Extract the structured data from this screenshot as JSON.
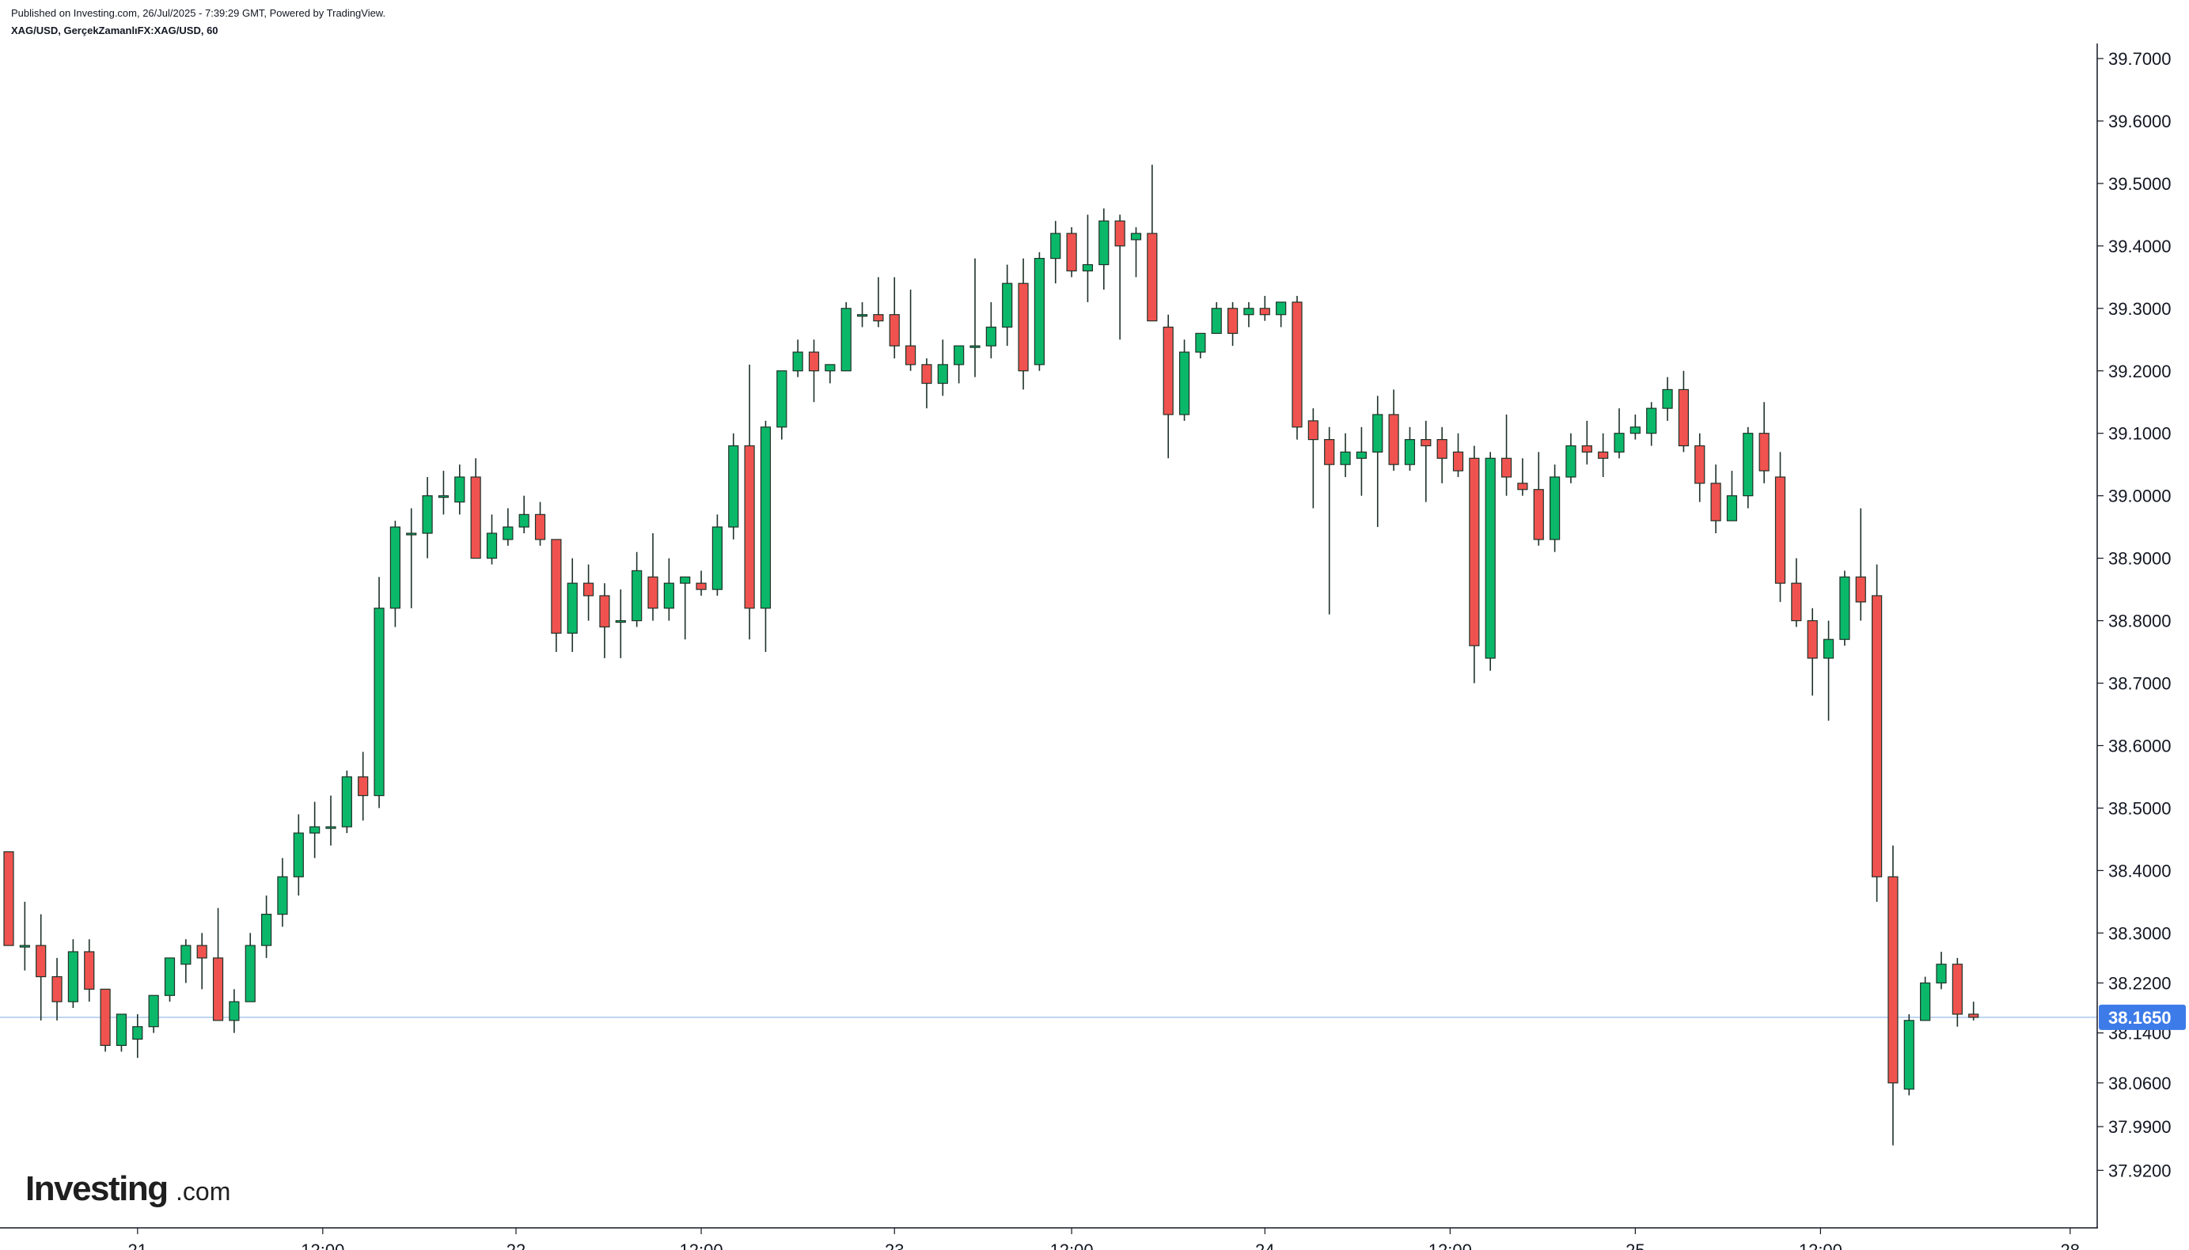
{
  "header": {
    "published": "Published on Investing.com, 26/Jul/2025 - 7:39:29 GMT, Powered by TradingView.",
    "symbol_line": "XAG/USD, GerçekZamanlıFX:XAG/USD, 60"
  },
  "logo": {
    "brand": "Investing",
    "suffix": ".com"
  },
  "colors": {
    "up": "#0bb86a",
    "down": "#f0534f",
    "wick": "#1e3228",
    "price_line": "#a9c8ec",
    "price_tag": "#3d7be8",
    "axis": "#131722"
  },
  "chart_data": {
    "type": "candlestick",
    "timeframe": "60",
    "ylim": [
      37.86,
      39.73
    ],
    "y_ticks": [
      {
        "value": 39.7,
        "label": "39.7000"
      },
      {
        "value": 39.6,
        "label": "39.6000"
      },
      {
        "value": 39.5,
        "label": "39.5000"
      },
      {
        "value": 39.4,
        "label": "39.4000"
      },
      {
        "value": 39.3,
        "label": "39.3000"
      },
      {
        "value": 39.2,
        "label": "39.2000"
      },
      {
        "value": 39.1,
        "label": "39.1000"
      },
      {
        "value": 39.0,
        "label": "39.0000"
      },
      {
        "value": 38.9,
        "label": "38.9000"
      },
      {
        "value": 38.8,
        "label": "38.8000"
      },
      {
        "value": 38.7,
        "label": "38.7000"
      },
      {
        "value": 38.6,
        "label": "38.6000"
      },
      {
        "value": 38.5,
        "label": "38.5000"
      },
      {
        "value": 38.4,
        "label": "38.4000"
      },
      {
        "value": 38.3,
        "label": "38.3000"
      },
      {
        "value": 38.22,
        "label": "38.2200"
      },
      {
        "value": 38.14,
        "label": "38.1400"
      },
      {
        "value": 38.06,
        "label": "38.0600"
      },
      {
        "value": 37.99,
        "label": "37.9900"
      },
      {
        "value": 37.92,
        "label": "37.9200"
      }
    ],
    "x_ticks": [
      {
        "index": 8,
        "label": "21"
      },
      {
        "index": 19.5,
        "label": "12:00"
      },
      {
        "index": 31.5,
        "label": "22"
      },
      {
        "index": 43,
        "label": "12:00"
      },
      {
        "index": 55,
        "label": "23"
      },
      {
        "index": 66,
        "label": "12:00"
      },
      {
        "index": 78,
        "label": "24"
      },
      {
        "index": 89.5,
        "label": "12:00"
      },
      {
        "index": 101,
        "label": "25"
      },
      {
        "index": 112.5,
        "label": "12:00"
      },
      {
        "index": 128,
        "label": "28"
      }
    ],
    "last_price": {
      "value": 38.165,
      "label": "38.1650"
    },
    "candles": [
      [
        38.43,
        38.43,
        38.28,
        38.28
      ],
      [
        38.28,
        38.35,
        38.24,
        38.28
      ],
      [
        38.28,
        38.33,
        38.16,
        38.23
      ],
      [
        38.23,
        38.26,
        38.16,
        38.19
      ],
      [
        38.19,
        38.29,
        38.18,
        38.27
      ],
      [
        38.27,
        38.29,
        38.19,
        38.21
      ],
      [
        38.21,
        38.21,
        38.11,
        38.12
      ],
      [
        38.12,
        38.17,
        38.11,
        38.17
      ],
      [
        38.13,
        38.17,
        38.1,
        38.15
      ],
      [
        38.15,
        38.2,
        38.14,
        38.2
      ],
      [
        38.2,
        38.26,
        38.19,
        38.26
      ],
      [
        38.25,
        38.29,
        38.22,
        38.28
      ],
      [
        38.28,
        38.3,
        38.21,
        38.26
      ],
      [
        38.26,
        38.34,
        38.16,
        38.16
      ],
      [
        38.16,
        38.21,
        38.14,
        38.19
      ],
      [
        38.19,
        38.3,
        38.19,
        38.28
      ],
      [
        38.28,
        38.36,
        38.26,
        38.33
      ],
      [
        38.33,
        38.42,
        38.31,
        38.39
      ],
      [
        38.39,
        38.49,
        38.36,
        38.46
      ],
      [
        38.46,
        38.51,
        38.42,
        38.47
      ],
      [
        38.47,
        38.52,
        38.44,
        38.47
      ],
      [
        38.47,
        38.56,
        38.46,
        38.55
      ],
      [
        38.55,
        38.59,
        38.48,
        38.52
      ],
      [
        38.52,
        38.87,
        38.5,
        38.82
      ],
      [
        38.82,
        38.96,
        38.79,
        38.95
      ],
      [
        38.94,
        38.98,
        38.82,
        38.94
      ],
      [
        38.94,
        39.03,
        38.9,
        39.0
      ],
      [
        39.0,
        39.04,
        38.97,
        39.0
      ],
      [
        38.99,
        39.05,
        38.97,
        39.03
      ],
      [
        39.03,
        39.06,
        38.9,
        38.9
      ],
      [
        38.9,
        38.97,
        38.89,
        38.94
      ],
      [
        38.93,
        38.98,
        38.92,
        38.95
      ],
      [
        38.95,
        39.0,
        38.94,
        38.97
      ],
      [
        38.97,
        38.99,
        38.92,
        38.93
      ],
      [
        38.93,
        38.93,
        38.75,
        38.78
      ],
      [
        38.78,
        38.9,
        38.75,
        38.86
      ],
      [
        38.86,
        38.89,
        38.8,
        38.84
      ],
      [
        38.84,
        38.86,
        38.74,
        38.79
      ],
      [
        38.8,
        38.85,
        38.74,
        38.8
      ],
      [
        38.8,
        38.91,
        38.79,
        38.88
      ],
      [
        38.87,
        38.94,
        38.8,
        38.82
      ],
      [
        38.82,
        38.9,
        38.8,
        38.86
      ],
      [
        38.86,
        38.87,
        38.77,
        38.87
      ],
      [
        38.86,
        38.88,
        38.84,
        38.85
      ],
      [
        38.85,
        38.97,
        38.84,
        38.95
      ],
      [
        38.95,
        39.1,
        38.93,
        39.08
      ],
      [
        39.08,
        39.21,
        38.77,
        38.82
      ],
      [
        38.82,
        39.12,
        38.75,
        39.11
      ],
      [
        39.11,
        39.2,
        39.09,
        39.2
      ],
      [
        39.2,
        39.25,
        39.19,
        39.23
      ],
      [
        39.23,
        39.25,
        39.15,
        39.2
      ],
      [
        39.2,
        39.21,
        39.18,
        39.21
      ],
      [
        39.2,
        39.31,
        39.2,
        39.3
      ],
      [
        39.29,
        39.31,
        39.27,
        39.29
      ],
      [
        39.29,
        39.35,
        39.27,
        39.28
      ],
      [
        39.29,
        39.35,
        39.22,
        39.24
      ],
      [
        39.24,
        39.33,
        39.2,
        39.21
      ],
      [
        39.21,
        39.22,
        39.14,
        39.18
      ],
      [
        39.18,
        39.25,
        39.16,
        39.21
      ],
      [
        39.21,
        39.24,
        39.18,
        39.24
      ],
      [
        39.24,
        39.38,
        39.19,
        39.24
      ],
      [
        39.24,
        39.31,
        39.22,
        39.27
      ],
      [
        39.27,
        39.37,
        39.24,
        39.34
      ],
      [
        39.34,
        39.38,
        39.17,
        39.2
      ],
      [
        39.21,
        39.39,
        39.2,
        39.38
      ],
      [
        39.38,
        39.44,
        39.34,
        39.42
      ],
      [
        39.42,
        39.43,
        39.35,
        39.36
      ],
      [
        39.36,
        39.45,
        39.31,
        39.37
      ],
      [
        39.37,
        39.46,
        39.33,
        39.44
      ],
      [
        39.44,
        39.45,
        39.25,
        39.4
      ],
      [
        39.41,
        39.43,
        39.35,
        39.42
      ],
      [
        39.42,
        39.53,
        39.28,
        39.28
      ],
      [
        39.27,
        39.29,
        39.06,
        39.13
      ],
      [
        39.13,
        39.25,
        39.12,
        39.23
      ],
      [
        39.23,
        39.26,
        39.22,
        39.26
      ],
      [
        39.26,
        39.31,
        39.26,
        39.3
      ],
      [
        39.3,
        39.31,
        39.24,
        39.26
      ],
      [
        39.29,
        39.31,
        39.27,
        39.3
      ],
      [
        39.3,
        39.32,
        39.28,
        39.29
      ],
      [
        39.29,
        39.31,
        39.27,
        39.31
      ],
      [
        39.31,
        39.32,
        39.09,
        39.11
      ],
      [
        39.12,
        39.14,
        38.98,
        39.09
      ],
      [
        39.09,
        39.11,
        38.81,
        39.05
      ],
      [
        39.05,
        39.1,
        39.03,
        39.07
      ],
      [
        39.06,
        39.11,
        39.0,
        39.07
      ],
      [
        39.07,
        39.16,
        38.95,
        39.13
      ],
      [
        39.13,
        39.17,
        39.04,
        39.05
      ],
      [
        39.05,
        39.11,
        39.04,
        39.09
      ],
      [
        39.09,
        39.12,
        38.99,
        39.08
      ],
      [
        39.09,
        39.11,
        39.02,
        39.06
      ],
      [
        39.07,
        39.1,
        39.03,
        39.04
      ],
      [
        39.06,
        39.08,
        38.7,
        38.76
      ],
      [
        38.74,
        39.07,
        38.72,
        39.06
      ],
      [
        39.06,
        39.13,
        39.0,
        39.03
      ],
      [
        39.02,
        39.06,
        39.0,
        39.01
      ],
      [
        39.01,
        39.07,
        38.92,
        38.93
      ],
      [
        38.93,
        39.05,
        38.91,
        39.03
      ],
      [
        39.03,
        39.1,
        39.02,
        39.08
      ],
      [
        39.08,
        39.12,
        39.05,
        39.07
      ],
      [
        39.07,
        39.1,
        39.03,
        39.06
      ],
      [
        39.07,
        39.14,
        39.06,
        39.1
      ],
      [
        39.1,
        39.13,
        39.09,
        39.11
      ],
      [
        39.1,
        39.15,
        39.08,
        39.14
      ],
      [
        39.14,
        39.19,
        39.12,
        39.17
      ],
      [
        39.17,
        39.2,
        39.07,
        39.08
      ],
      [
        39.08,
        39.1,
        38.99,
        39.02
      ],
      [
        39.02,
        39.05,
        38.94,
        38.96
      ],
      [
        38.96,
        39.04,
        38.96,
        39.0
      ],
      [
        39.0,
        39.11,
        38.98,
        39.1
      ],
      [
        39.1,
        39.15,
        39.02,
        39.04
      ],
      [
        39.03,
        39.07,
        38.83,
        38.86
      ],
      [
        38.86,
        38.9,
        38.79,
        38.8
      ],
      [
        38.8,
        38.82,
        38.68,
        38.74
      ],
      [
        38.74,
        38.8,
        38.64,
        38.77
      ],
      [
        38.77,
        38.88,
        38.76,
        38.87
      ],
      [
        38.87,
        38.98,
        38.8,
        38.83
      ],
      [
        38.84,
        38.89,
        38.35,
        38.39
      ],
      [
        38.39,
        38.44,
        37.96,
        38.06
      ],
      [
        38.05,
        38.17,
        38.04,
        38.16
      ],
      [
        38.16,
        38.23,
        38.16,
        38.22
      ],
      [
        38.22,
        38.27,
        38.21,
        38.25
      ],
      [
        38.25,
        38.26,
        38.15,
        38.17
      ],
      [
        38.17,
        38.19,
        38.16,
        38.165
      ]
    ]
  }
}
